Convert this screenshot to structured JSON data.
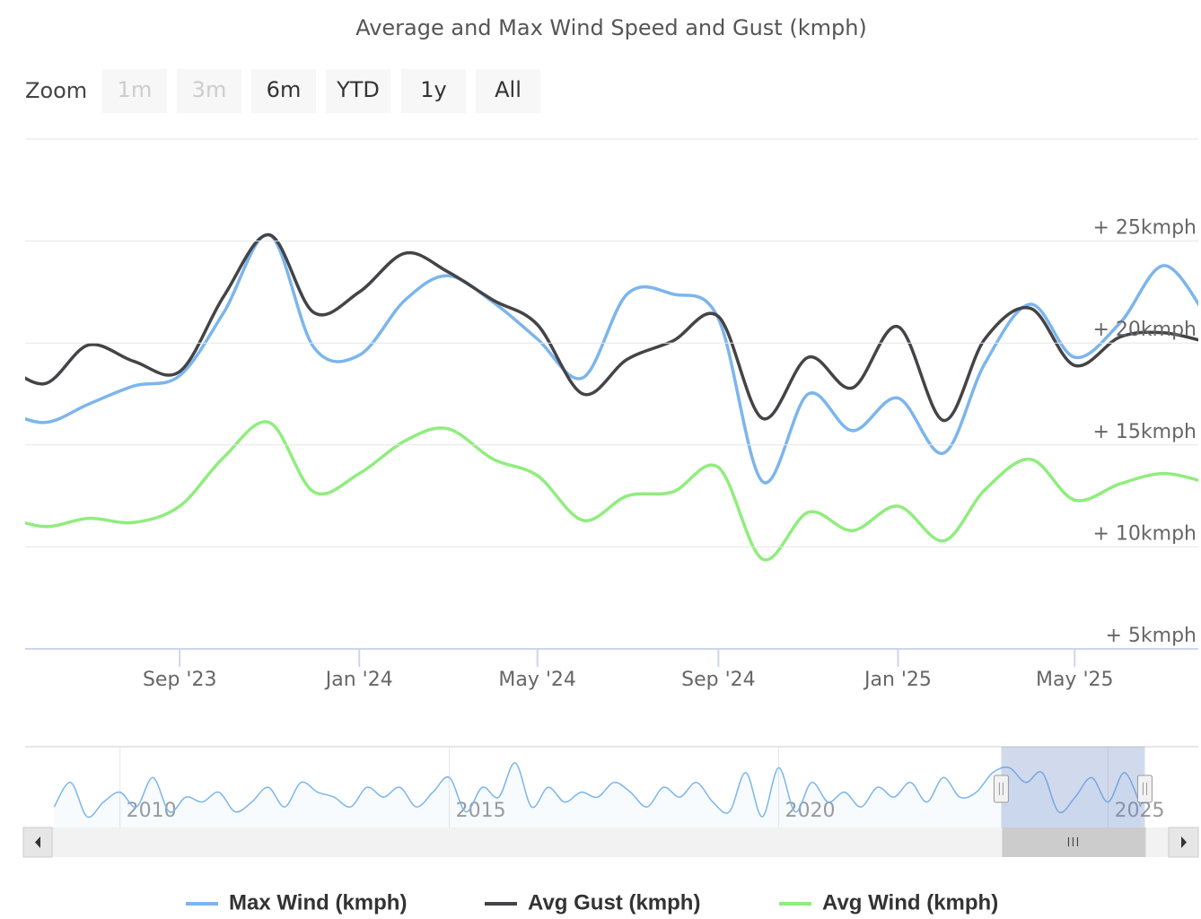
{
  "chart_data": {
    "type": "line",
    "title": "Average and Max Wind Speed and Gust (kmph)",
    "range_selector": {
      "label": "Zoom",
      "buttons": [
        {
          "label": "1m",
          "disabled": true
        },
        {
          "label": "3m",
          "disabled": true
        },
        {
          "label": "6m",
          "disabled": false
        },
        {
          "label": "YTD",
          "disabled": false
        },
        {
          "label": "1y",
          "disabled": false
        },
        {
          "label": "All",
          "disabled": false
        }
      ]
    },
    "x": [
      "2023-05",
      "2023-06",
      "2023-07",
      "2023-08",
      "2023-09",
      "2023-10",
      "2023-11",
      "2023-12",
      "2024-01",
      "2024-02",
      "2024-03",
      "2024-04",
      "2024-05",
      "2024-06",
      "2024-07",
      "2024-08",
      "2024-09",
      "2024-10",
      "2024-11",
      "2024-12",
      "2025-01",
      "2025-02",
      "2025-03",
      "2025-04",
      "2025-05",
      "2025-06",
      "2025-07",
      "2025-08"
    ],
    "series": [
      {
        "name": "Max Wind (kmph)",
        "color": "#7cb5ec",
        "values": [
          16.8,
          16.1,
          17.0,
          17.9,
          18.4,
          21.5,
          25.3,
          19.8,
          19.4,
          22.1,
          23.3,
          22.0,
          20.2,
          18.3,
          22.4,
          22.4,
          21.2,
          13.2,
          17.5,
          15.7,
          17.3,
          14.6,
          19.0,
          21.9,
          19.3,
          21.0,
          23.8,
          21.0
        ]
      },
      {
        "name": "Avg Gust (kmph)",
        "color": "#434348",
        "values": [
          19.2,
          18.0,
          19.9,
          19.1,
          18.6,
          22.3,
          25.3,
          21.5,
          22.5,
          24.4,
          23.5,
          22.1,
          20.9,
          17.5,
          19.2,
          20.1,
          21.3,
          16.3,
          19.3,
          17.8,
          20.8,
          16.2,
          20.2,
          21.7,
          18.9,
          20.3,
          20.5,
          20.0
        ]
      },
      {
        "name": "Avg Wind (kmph)",
        "color": "#90ed7d",
        "values": [
          11.6,
          11.0,
          11.4,
          11.2,
          12.0,
          14.4,
          16.1,
          12.7,
          13.6,
          15.2,
          15.8,
          14.3,
          13.5,
          11.3,
          12.5,
          12.7,
          13.9,
          9.4,
          11.7,
          10.8,
          12.0,
          10.3,
          12.8,
          14.3,
          12.3,
          13.1,
          13.6,
          13.1
        ]
      }
    ],
    "xlim": [
      "2023-05-19",
      "2025-07-24"
    ],
    "xticks": [
      {
        "value": "2023-09",
        "label": "Sep '23"
      },
      {
        "value": "2024-01",
        "label": "Jan '24"
      },
      {
        "value": "2024-05",
        "label": "May '24"
      },
      {
        "value": "2024-09",
        "label": "Sep '24"
      },
      {
        "value": "2025-01",
        "label": "Jan '25"
      },
      {
        "value": "2025-05",
        "label": "May '25"
      }
    ],
    "ylim": [
      5,
      30
    ],
    "yticks": [
      {
        "value": 5,
        "label": "+ 5kmph"
      },
      {
        "value": 10,
        "label": "+ 10kmph"
      },
      {
        "value": 15,
        "label": "+ 15kmph"
      },
      {
        "value": 20,
        "label": "+ 20kmph"
      },
      {
        "value": 25,
        "label": "+ 25kmph"
      }
    ],
    "grid": true,
    "navigator": {
      "color": "#7cb5ec",
      "xlim": [
        2008.56,
        2026.37
      ],
      "xticks": [
        2010,
        2015,
        2020,
        2025
      ],
      "x": [
        2009,
        2009.25,
        2009.5,
        2009.75,
        2010,
        2010.25,
        2010.5,
        2010.75,
        2011,
        2011.25,
        2011.5,
        2011.75,
        2012,
        2012.25,
        2012.5,
        2012.75,
        2013,
        2013.25,
        2013.5,
        2013.75,
        2014,
        2014.25,
        2014.5,
        2014.75,
        2015,
        2015.25,
        2015.5,
        2015.75,
        2016,
        2016.25,
        2016.5,
        2016.75,
        2017,
        2017.25,
        2017.5,
        2017.75,
        2018,
        2018.25,
        2018.5,
        2018.75,
        2019,
        2019.25,
        2019.5,
        2019.75,
        2020,
        2020.25,
        2020.5,
        2020.75,
        2021,
        2021.25,
        2021.5,
        2021.75,
        2022,
        2022.25,
        2022.5,
        2022.75,
        2023,
        2023.25,
        2023.5,
        2023.75,
        2024,
        2024.25,
        2024.5,
        2024.75,
        2025,
        2025.25,
        2025.5
      ],
      "values": [
        17,
        22,
        15,
        18,
        20,
        17,
        23,
        16,
        19,
        18,
        20,
        16,
        18,
        21,
        17,
        22,
        20,
        19,
        17,
        21,
        19,
        21,
        17,
        20,
        23,
        16,
        21,
        19,
        26,
        17,
        21,
        18,
        20,
        19,
        22,
        20,
        17,
        21,
        19,
        22,
        18,
        16,
        24,
        15,
        25,
        16,
        22,
        18,
        20,
        17,
        21,
        19,
        22,
        18,
        23,
        19,
        20,
        24,
        25,
        22,
        24,
        16,
        19,
        23,
        18,
        24,
        17
      ]
    },
    "legend": "bottom"
  }
}
